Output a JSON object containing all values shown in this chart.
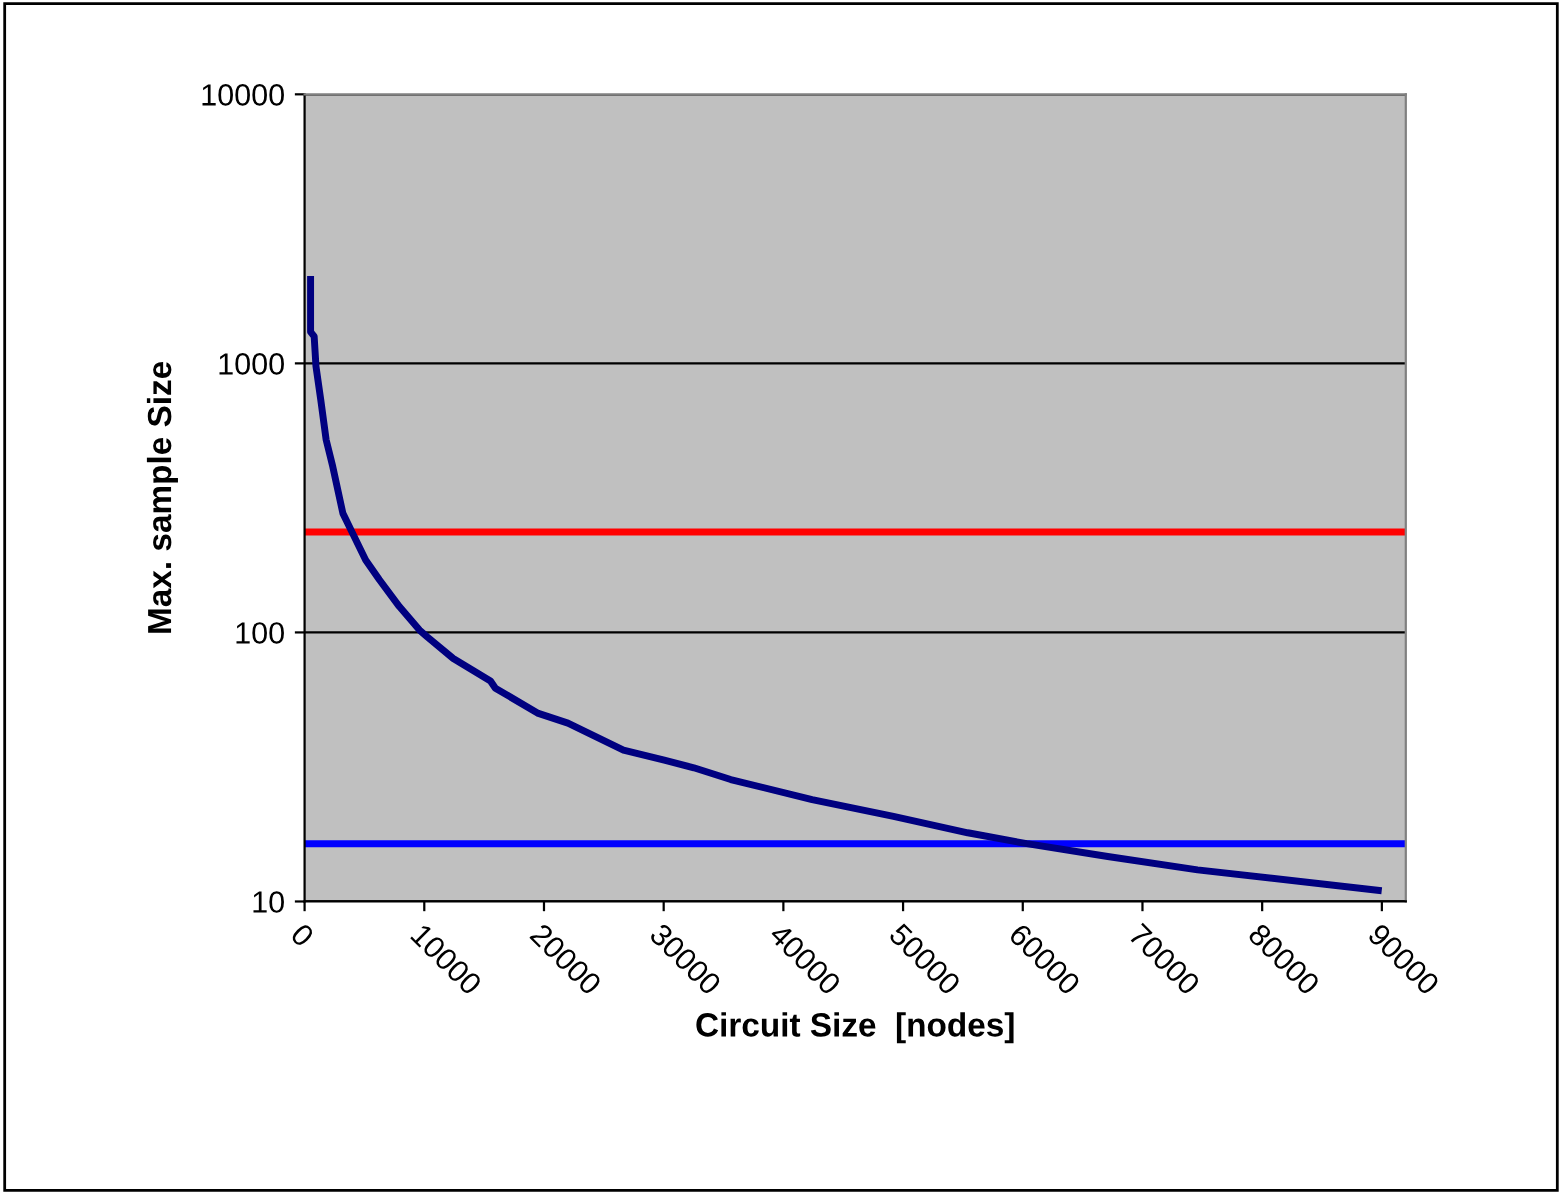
{
  "chart_data": {
    "type": "line",
    "xlabel": "Circuit Size  [nodes]",
    "ylabel": "Max. sample Size",
    "log": "y",
    "grid": "y",
    "xlim": [
      0,
      92000
    ],
    "xticks": [
      0,
      10000,
      20000,
      30000,
      40000,
      50000,
      60000,
      70000,
      80000,
      90000
    ],
    "ylim": [
      10,
      10000
    ],
    "yticks": [
      10,
      100,
      1000,
      10000
    ],
    "series": [
      {
        "color": "#000080",
        "x": [
          500,
          500,
          800,
          950,
          1350,
          1800,
          2350,
          3200,
          4000,
          5100,
          6250,
          7900,
          9600,
          10270,
          12420,
          15530,
          15940,
          17060,
          19530,
          22000,
          26640,
          30050,
          32520,
          35600,
          42400,
          49200,
          55400,
          60330,
          67100,
          74600,
          89700
        ],
        "values": [
          2050,
          1310,
          1260,
          975,
          733,
          520,
          414,
          277,
          234,
          186,
          157,
          125,
          102,
          96,
          80,
          66,
          62,
          58,
          50,
          46,
          36.5,
          33.5,
          31.4,
          28.4,
          23.9,
          20.7,
          18.0,
          16.4,
          14.7,
          13.1,
          11.0
        ]
      }
    ],
    "ref_lines": [
      {
        "axis": "y",
        "value": 236,
        "color": "#ff0000"
      },
      {
        "axis": "y",
        "value": 16.4,
        "color": "#0000ff"
      }
    ]
  }
}
